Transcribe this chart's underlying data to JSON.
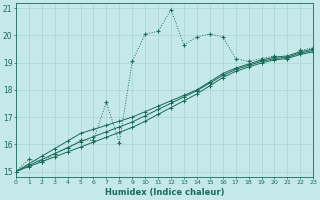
{
  "xlabel": "Humidex (Indice chaleur)",
  "bg_color": "#c5e8e8",
  "line_color": "#1a6b5a",
  "grid_color": "#aad4d4",
  "xlim": [
    0,
    23
  ],
  "ylim": [
    14.8,
    21.2
  ],
  "yticks": [
    15,
    16,
    17,
    18,
    19,
    20,
    21
  ],
  "xticks": [
    0,
    1,
    2,
    3,
    4,
    5,
    6,
    7,
    8,
    9,
    10,
    11,
    12,
    13,
    14,
    15,
    16,
    17,
    18,
    19,
    20,
    21,
    22,
    23
  ],
  "line1_x": [
    0,
    1,
    2,
    3,
    4,
    5,
    6,
    7,
    8,
    9,
    10,
    11,
    12,
    13,
    14,
    15,
    16,
    17,
    18,
    19,
    20,
    21,
    22,
    23
  ],
  "line1_y": [
    15.0,
    15.45,
    15.35,
    15.65,
    15.85,
    16.15,
    16.15,
    17.55,
    16.05,
    19.05,
    20.05,
    20.15,
    20.95,
    19.65,
    19.95,
    20.05,
    19.95,
    19.15,
    19.05,
    19.15,
    19.25,
    19.15,
    19.45,
    19.55
  ],
  "line2_x": [
    0,
    1,
    2,
    3,
    4,
    5,
    6,
    7,
    8,
    9,
    10,
    11,
    12,
    13,
    14,
    15,
    16,
    17,
    18,
    19,
    20,
    21,
    22,
    23
  ],
  "line2_y": [
    15.0,
    15.28,
    15.56,
    15.84,
    16.12,
    16.4,
    16.55,
    16.7,
    16.85,
    17.0,
    17.2,
    17.4,
    17.6,
    17.8,
    18.0,
    18.3,
    18.6,
    18.8,
    18.95,
    19.1,
    19.2,
    19.25,
    19.4,
    19.5
  ],
  "line3_x": [
    0,
    1,
    2,
    3,
    4,
    5,
    6,
    7,
    8,
    9,
    10,
    11,
    12,
    13,
    14,
    15,
    16,
    17,
    18,
    19,
    20,
    21,
    22,
    23
  ],
  "line3_y": [
    15.0,
    15.22,
    15.44,
    15.66,
    15.88,
    16.1,
    16.28,
    16.46,
    16.64,
    16.82,
    17.05,
    17.28,
    17.51,
    17.74,
    17.97,
    18.25,
    18.53,
    18.75,
    18.9,
    19.05,
    19.15,
    19.2,
    19.35,
    19.45
  ],
  "line4_x": [
    0,
    1,
    2,
    3,
    4,
    5,
    6,
    7,
    8,
    9,
    10,
    11,
    12,
    13,
    14,
    15,
    16,
    17,
    18,
    19,
    20,
    21,
    22,
    23
  ],
  "line4_y": [
    15.0,
    15.18,
    15.36,
    15.54,
    15.72,
    15.9,
    16.08,
    16.26,
    16.44,
    16.62,
    16.85,
    17.1,
    17.35,
    17.6,
    17.85,
    18.15,
    18.45,
    18.68,
    18.84,
    18.99,
    19.1,
    19.15,
    19.3,
    19.4
  ]
}
